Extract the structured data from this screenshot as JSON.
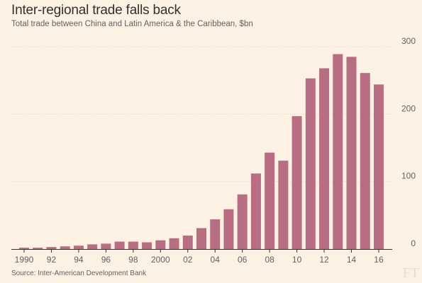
{
  "header": {
    "title": "Inter-regional trade falls back",
    "subtitle": "Total trade between China and Latin America & the Caribbean, $bn"
  },
  "footer": {
    "source": "Source: Inter-American Development Bank",
    "logo_text": "FT"
  },
  "colors": {
    "background": "#fdf1e4",
    "bar": "#b76e82",
    "grid": "#ddd3c8",
    "axis": "#33302e",
    "text": "#66605c"
  },
  "chart_data": {
    "type": "bar",
    "title": "Inter-regional trade falls back",
    "subtitle": "Total trade between China and Latin America & the Caribbean, $bn",
    "xlabel": "",
    "ylabel": "",
    "categories": [
      "1990",
      "1991",
      "1992",
      "1993",
      "1994",
      "1995",
      "1996",
      "1997",
      "1998",
      "1999",
      "2000",
      "2001",
      "2002",
      "2003",
      "2004",
      "2005",
      "2006",
      "2007",
      "2008",
      "2009",
      "2010",
      "2011",
      "2012",
      "2013",
      "2014",
      "2015",
      "2016"
    ],
    "values": [
      2,
      2,
      3,
      4,
      5,
      7,
      8,
      11,
      11,
      10,
      13,
      16,
      20,
      31,
      44,
      59,
      81,
      112,
      143,
      131,
      197,
      253,
      268,
      289,
      285,
      261,
      244
    ],
    "x_tick_labels": [
      "1990",
      "92",
      "94",
      "96",
      "98",
      "2000",
      "02",
      "04",
      "06",
      "08",
      "10",
      "12",
      "14",
      "16"
    ],
    "x_tick_indices": [
      0,
      2,
      4,
      6,
      8,
      10,
      12,
      14,
      16,
      18,
      20,
      22,
      24,
      26
    ],
    "y_ticks": [
      0,
      100,
      200,
      300
    ],
    "ylim": [
      0,
      300
    ],
    "grid": true,
    "y_axis_position": "right"
  }
}
